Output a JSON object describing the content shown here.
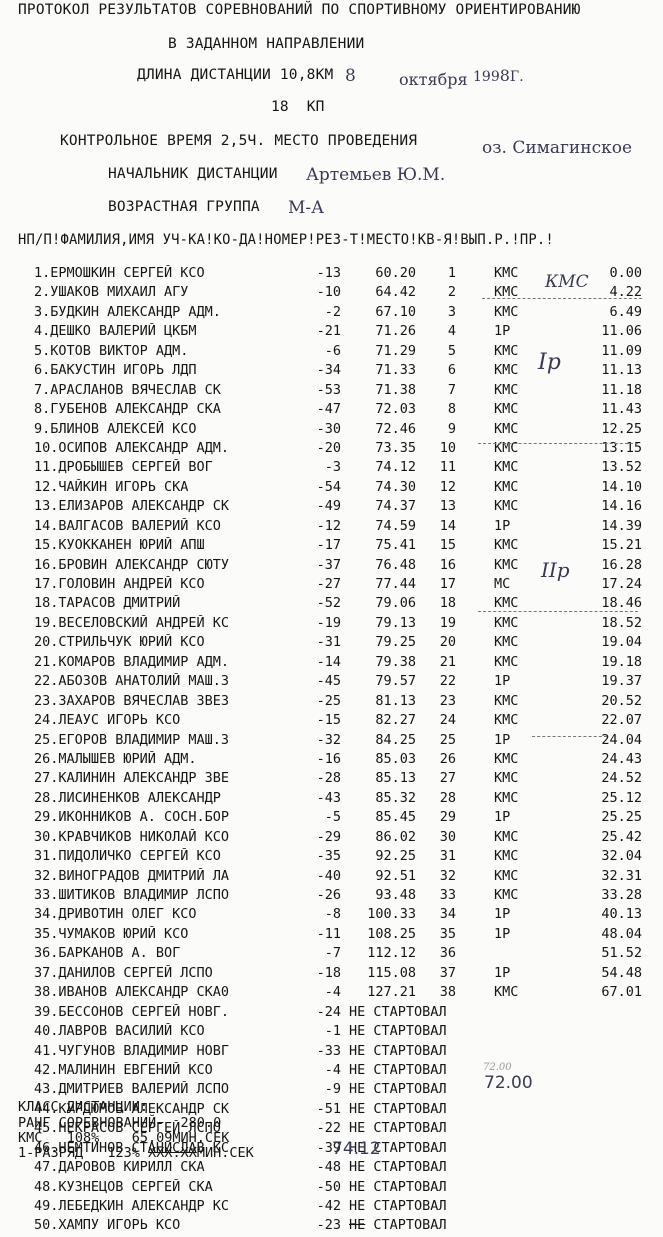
{
  "header": {
    "line1": "ПРОТОКОЛ РЕЗУЛЬТАТОВ СОРЕВНОВАНИЙ ПО СПОРТИВНОМУ ОРИЕНТИРОВАНИЮ",
    "line2": "В ЗАДАННОМ НАПРАВЛЕНИИ",
    "distance_label": "ДЛИНА ДИСТАНЦИИ 10,8КМ",
    "date_day": "8",
    "date_month": "октября",
    "date_year_a": "199",
    "date_year_b": "8",
    "date_suffix": "Г.",
    "kp": "18  КП",
    "control_time": "КОНТРОЛЬНОЕ ВРЕМЯ 2,5Ч. МЕСТО ПРОВЕДЕНИЯ",
    "venue": "оз. Симагинское",
    "director_label": "НАЧАЛЬНИК ДИСТАНЦИИ",
    "director": "Артемьев Ю.М.",
    "age_group_label": "ВОЗРАСТНАЯ ГРУППА",
    "age_group": "М-А",
    "columns": "НП/П!ФАМИЛИЯ,ИМЯ УЧ-КА!КО-ДА!НОМЕР!РЕЗ-Т!МЕСТО!КВ-Я!ВЫП.Р.!ПР.!"
  },
  "rows": [
    {
      "name": "1.ЕРМОШКИН СЕРГЕЙ КСО",
      "ctrl": "-13",
      "res": "60.20",
      "place": "1",
      "qual": "КМС",
      "pct": "0.00"
    },
    {
      "name": "2.УШАКОВ МИХАИЛ АГУ",
      "ctrl": "-10",
      "res": "64.42",
      "place": "2",
      "qual": "КМС",
      "pct": "4.22"
    },
    {
      "name": "3.БУДКИН АЛЕКСАНДР АДМ.",
      "ctrl": "-2",
      "res": "67.10",
      "place": "3",
      "qual": "КМС",
      "pct": "6.49"
    },
    {
      "name": "4.ДЕШКО ВАЛЕРИЙ ЦКБМ",
      "ctrl": "-21",
      "res": "71.26",
      "place": "4",
      "qual": "1Р",
      "pct": "11.06"
    },
    {
      "name": "5.КОТОВ ВИКТОР АДМ.",
      "ctrl": "-6",
      "res": "71.29",
      "place": "5",
      "qual": "КМС",
      "pct": "11.09"
    },
    {
      "name": "6.БАКУСТИН ИГОРЬ ЛДП",
      "ctrl": "-34",
      "res": "71.33",
      "place": "6",
      "qual": "КМС",
      "pct": "11.13"
    },
    {
      "name": "7.АРАСЛАНОВ ВЯЧЕСЛАВ СК",
      "ctrl": "-53",
      "res": "71.38",
      "place": "7",
      "qual": "КМС",
      "pct": "11.18"
    },
    {
      "name": "8.ГУБЕНОВ АЛЕКСАНДР СКА",
      "ctrl": "-47",
      "res": "72.03",
      "place": "8",
      "qual": "КМС",
      "pct": "11.43"
    },
    {
      "name": "9.БЛИНОВ АЛЕКСЕЙ КСО",
      "ctrl": "-30",
      "res": "72.46",
      "place": "9",
      "qual": "КМС",
      "pct": "12.25"
    },
    {
      "name": "10.ОСИПОВ АЛЕКСАНДР АДМ.",
      "ctrl": "-20",
      "res": "73.35",
      "place": "10",
      "qual": "КМС",
      "pct": "13.15"
    },
    {
      "name": "11.ДРОБЫШЕВ СЕРГЕЙ ВОГ",
      "ctrl": "-3",
      "res": "74.12",
      "place": "11",
      "qual": "КМС",
      "pct": "13.52"
    },
    {
      "name": "12.ЧАЙКИН ИГОРЬ СКА",
      "ctrl": "-54",
      "res": "74.30",
      "place": "12",
      "qual": "КМС",
      "pct": "14.10"
    },
    {
      "name": "13.ЕЛИЗАРОВ АЛЕКСАНДР СК",
      "ctrl": "-49",
      "res": "74.37",
      "place": "13",
      "qual": "КМС",
      "pct": "14.16"
    },
    {
      "name": "14.ВАЛГАСОВ ВАЛЕРИЙ КСО",
      "ctrl": "-12",
      "res": "74.59",
      "place": "14",
      "qual": "1Р",
      "pct": "14.39"
    },
    {
      "name": "15.КУОККАНЕН ЮРИЙ АПШ",
      "ctrl": "-17",
      "res": "75.41",
      "place": "15",
      "qual": "КМС",
      "pct": "15.21"
    },
    {
      "name": "16.БРОВИН АЛЕКСАНДР СЮТУ",
      "ctrl": "-37",
      "res": "76.48",
      "place": "16",
      "qual": "КМС",
      "pct": "16.28"
    },
    {
      "name": "17.ГОЛОВИН АНДРЕЙ КСО",
      "ctrl": "-27",
      "res": "77.44",
      "place": "17",
      "qual": "МС",
      "pct": "17.24"
    },
    {
      "name": "18.ТАРАСОВ ДМИТРИЙ",
      "ctrl": "-52",
      "res": "79.06",
      "place": "18",
      "qual": "КМС",
      "pct": "18.46"
    },
    {
      "name": "19.ВЕСЕЛОВСКИЙ АНДРЕЙ КС",
      "ctrl": "-19",
      "res": "79.13",
      "place": "19",
      "qual": "КМС",
      "pct": "18.52"
    },
    {
      "name": "20.СТРИЛЬЧУК ЮРИЙ КСО",
      "ctrl": "-31",
      "res": "79.25",
      "place": "20",
      "qual": "КМС",
      "pct": "19.04"
    },
    {
      "name": "21.КОМАРОВ ВЛАДИМИР АДМ.",
      "ctrl": "-14",
      "res": "79.38",
      "place": "21",
      "qual": "КМС",
      "pct": "19.18"
    },
    {
      "name": "22.АБОЗОВ АНАТОЛИЙ МАШ.З",
      "ctrl": "-45",
      "res": "79.57",
      "place": "22",
      "qual": "1Р",
      "pct": "19.37"
    },
    {
      "name": "23.ЗАХАРОВ ВЯЧЕСЛАВ ЗВЕЗ",
      "ctrl": "-25",
      "res": "81.13",
      "place": "23",
      "qual": "КМС",
      "pct": "20.52"
    },
    {
      "name": "24.ЛЕАУС ИГОРЬ КСО",
      "ctrl": "-15",
      "res": "82.27",
      "place": "24",
      "qual": "КМС",
      "pct": "22.07"
    },
    {
      "name": "25.ЕГОРОВ ВЛАДИМИР МАШ.З",
      "ctrl": "-32",
      "res": "84.25",
      "place": "25",
      "qual": "1Р",
      "pct": "24.04"
    },
    {
      "name": "26.МАЛЫШЕВ ЮРИЙ АДМ.",
      "ctrl": "-16",
      "res": "85.03",
      "place": "26",
      "qual": "КМС",
      "pct": "24.43"
    },
    {
      "name": "27.КАЛИНИН АЛЕКСАНДР ЗВЕ",
      "ctrl": "-28",
      "res": "85.13",
      "place": "27",
      "qual": "КМС",
      "pct": "24.52"
    },
    {
      "name": "28.ЛИСИНЕНКОВ АЛЕКСАНДР",
      "ctrl": "-43",
      "res": "85.32",
      "place": "28",
      "qual": "КМС",
      "pct": "25.12"
    },
    {
      "name": "29.ИКОННИКОВ А. СОСН.БОР",
      "ctrl": "-5",
      "res": "85.45",
      "place": "29",
      "qual": "1Р",
      "pct": "25.25"
    },
    {
      "name": "30.КРАВЧИКОВ НИКОЛАЙ КСО",
      "ctrl": "-29",
      "res": "86.02",
      "place": "30",
      "qual": "КМС",
      "pct": "25.42"
    },
    {
      "name": "31.ПИДОЛИЧКО СЕРГЕЙ КСО",
      "ctrl": "-35",
      "res": "92.25",
      "place": "31",
      "qual": "КМС",
      "pct": "32.04"
    },
    {
      "name": "32.ВИНОГРАДОВ ДМИТРИЙ ЛА",
      "ctrl": "-40",
      "res": "92.51",
      "place": "32",
      "qual": "КМС",
      "pct": "32.31"
    },
    {
      "name": "33.ШИТИКОВ ВЛАДИМИР ЛСПО",
      "ctrl": "-26",
      "res": "93.48",
      "place": "33",
      "qual": "КМС",
      "pct": "33.28"
    },
    {
      "name": "34.ДРИВОТИН ОЛЕГ КСО",
      "ctrl": "-8",
      "res": "100.33",
      "place": "34",
      "qual": "1Р",
      "pct": "40.13"
    },
    {
      "name": "35.ЧУМАКОВ ЮРИЙ КСО",
      "ctrl": "-11",
      "res": "108.25",
      "place": "35",
      "qual": "1Р",
      "pct": "48.04"
    },
    {
      "name": "36.БАРКАНОВ А. ВОГ",
      "ctrl": "-7",
      "res": "112.12",
      "place": "36",
      "qual": "",
      "pct": "51.52"
    },
    {
      "name": "37.ДАНИЛОВ СЕРГЕЙ ЛСПО",
      "ctrl": "-18",
      "res": "115.08",
      "place": "37",
      "qual": "1Р",
      "pct": "54.48"
    },
    {
      "name": "38.ИВАНОВ АЛЕКСАНДР СКА0",
      "ctrl": "-4",
      "res": "127.21",
      "place": "38",
      "qual": "КМС",
      "pct": "67.01"
    }
  ],
  "dns_rows": [
    {
      "name": "39.БЕССОНОВ СЕРГЕЙ НОВГ.",
      "ctrl": "-24",
      "status": "НЕ СТАРТОВАЛ"
    },
    {
      "name": "40.ЛАВРОВ ВАСИЛИЙ КСО",
      "ctrl": "-1",
      "status": "НЕ СТАРТОВАЛ"
    },
    {
      "name": "41.ЧУГУНОВ ВЛАДИМИР НОВГ",
      "ctrl": "-33",
      "status": "НЕ СТАРТОВАЛ"
    },
    {
      "name": "42.МАЛИНИН ЕВГЕНИЙ КСО",
      "ctrl": "-4",
      "status": "НЕ СТАРТОВАЛ"
    },
    {
      "name": "43.ДМИТРИЕВ ВАЛЕРИЙ ЛСПО",
      "ctrl": "-9",
      "status": "НЕ СТАРТОВАЛ"
    },
    {
      "name": "44.КУРДЮМОВ АЛЕКСАНДР СК",
      "ctrl": "-51",
      "status": "НЕ СТАРТОВАЛ"
    },
    {
      "name": "45.НЕКРАСОВ СЕРГЕЙ ЛСПО",
      "ctrl": "-22",
      "status": "НЕ СТАРТОВАЛ"
    },
    {
      "name": "46.НЕМТИНОВ СТАНИСЛАВ КС",
      "ctrl": "-39",
      "status": "НЕ СТАРТОВАЛ"
    },
    {
      "name": "47.ДАРОВОВ КИРИЛЛ СКА",
      "ctrl": "-48",
      "status": "НЕ СТАРТОВАЛ"
    },
    {
      "name": "48.КУЗНЕЦОВ СЕРГЕЙ СКА",
      "ctrl": "-50",
      "status": "НЕ СТАРТОВАЛ"
    },
    {
      "name": "49.ЛЕБЕДКИН АЛЕКСАНДР КС",
      "ctrl": "-42",
      "status": "НЕ СТАРТОВАЛ"
    },
    {
      "name": "50.ХАМПУ ИГОРЬ КСО",
      "ctrl": "-23",
      "status": "СТАРТОВАЛ",
      "struck": "НЕ"
    }
  ],
  "handwritten": {
    "kms": "КМС",
    "rank1": "Iр",
    "rank2": "IIр",
    "total": "72.00",
    "total_faint": "72.00",
    "footer_num": "74.12"
  },
  "footer": {
    "class_label": "КЛАСС ДИСТАНЦИИ:",
    "rank_line": "РАНГ СОРЕВНОВАНИЙ-  280.0",
    "kms_line": "КМС   108%    65.09МИН.СЕК",
    "r1_prefix": "1-РАЗРЯД   123%",
    "r1_struck": "XXX.XX",
    "r1_suffix": "МИН.СЕК"
  }
}
